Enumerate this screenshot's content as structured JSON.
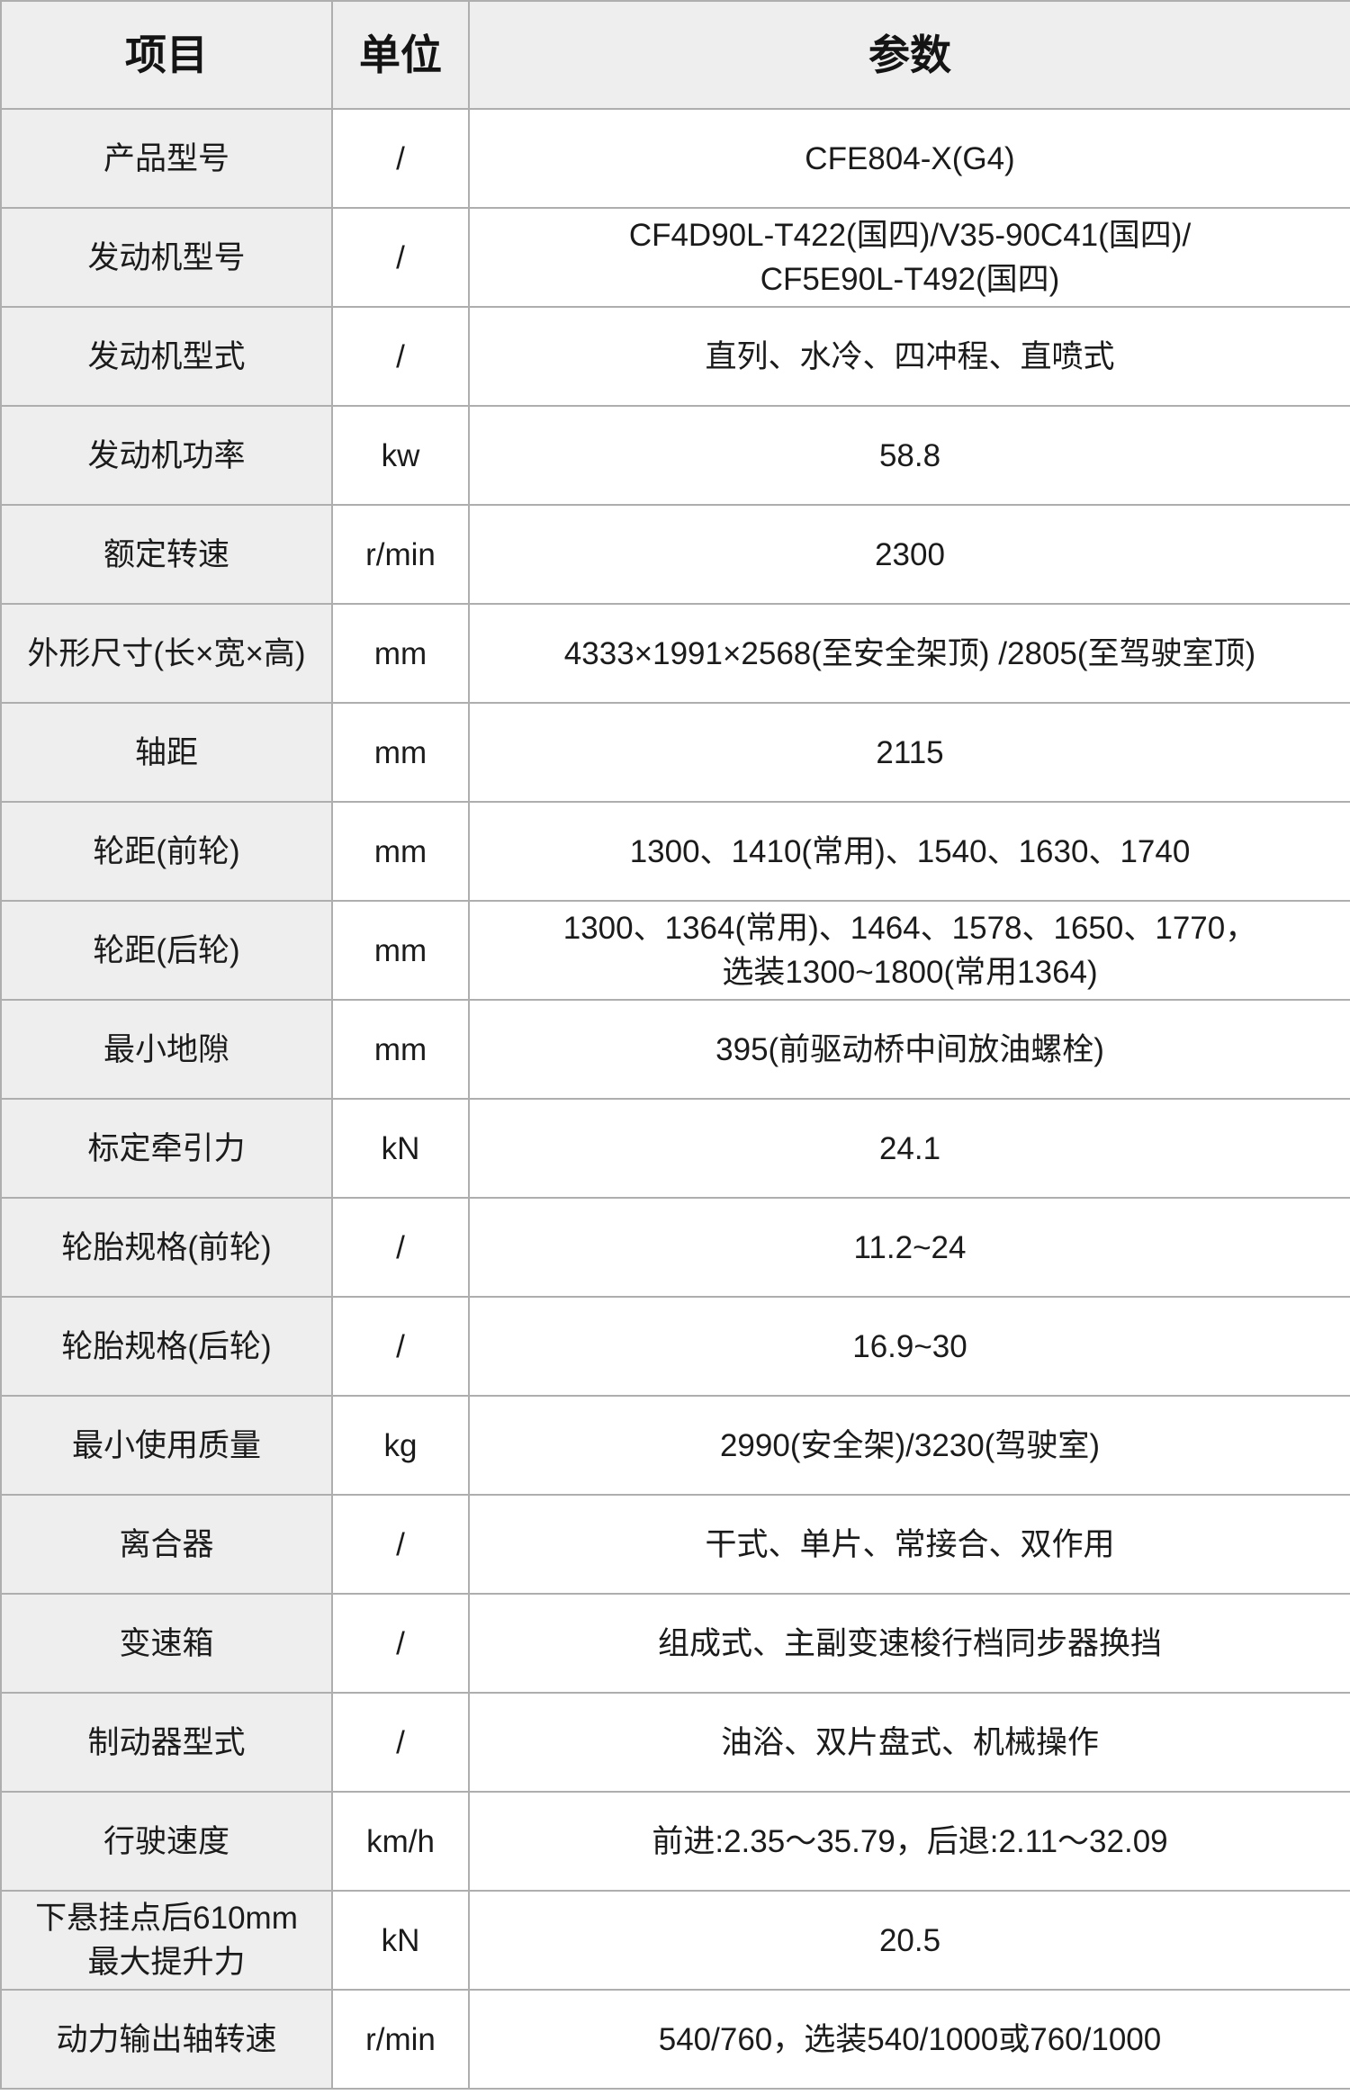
{
  "table": {
    "colors": {
      "header_bg": "#eeeeee",
      "item_column_bg": "#eeeeee",
      "cell_bg": "#ffffff",
      "border": "#aeaeae",
      "text": "#1b1b1b"
    },
    "header": {
      "item": "项目",
      "unit": "单位",
      "param": "参数"
    },
    "rows": [
      {
        "item": "产品型号",
        "unit": "/",
        "param": "CFE804-X(G4)"
      },
      {
        "item": "发动机型号",
        "unit": "/",
        "param": "CF4D90L-T422(国四)/V35-90C41(国四)/\nCF5E90L-T492(国四)"
      },
      {
        "item": "发动机型式",
        "unit": "/",
        "param": "直列、水冷、四冲程、直喷式"
      },
      {
        "item": "发动机功率",
        "unit": "kw",
        "param": "58.8"
      },
      {
        "item": "额定转速",
        "unit": "r/min",
        "param": "2300"
      },
      {
        "item": "外形尺寸(长×宽×高)",
        "unit": "mm",
        "param": "4333×1991×2568(至安全架顶) /2805(至驾驶室顶)"
      },
      {
        "item": "轴距",
        "unit": "mm",
        "param": "2115"
      },
      {
        "item": "轮距(前轮)",
        "unit": "mm",
        "param": "1300、1410(常用)、1540、1630、1740"
      },
      {
        "item": "轮距(后轮)",
        "unit": "mm",
        "param": "1300、1364(常用)、1464、1578、1650、1770，\n选装1300~1800(常用1364)"
      },
      {
        "item": "最小地隙",
        "unit": "mm",
        "param": "395(前驱动桥中间放油螺栓)"
      },
      {
        "item": "标定牵引力",
        "unit": "kN",
        "param": "24.1"
      },
      {
        "item": "轮胎规格(前轮)",
        "unit": "/",
        "param": "11.2~24"
      },
      {
        "item": "轮胎规格(后轮)",
        "unit": "/",
        "param": "16.9~30"
      },
      {
        "item": "最小使用质量",
        "unit": "kg",
        "param": "2990(安全架)/3230(驾驶室)"
      },
      {
        "item": "离合器",
        "unit": "/",
        "param": "干式、单片、常接合、双作用"
      },
      {
        "item": "变速箱",
        "unit": "/",
        "param": "组成式、主副变速梭行档同步器换挡"
      },
      {
        "item": "制动器型式",
        "unit": "/",
        "param": "油浴、双片盘式、机械操作"
      },
      {
        "item": "行驶速度",
        "unit": "km/h",
        "param": "前进:2.35～35.79，后退:2.11～32.09"
      },
      {
        "item": "下悬挂点后610mm\n最大提升力",
        "unit": "kN",
        "param": "20.5"
      },
      {
        "item": "动力输出轴转速",
        "unit": "r/min",
        "param": "540/760，选装540/1000或760/1000"
      }
    ]
  }
}
